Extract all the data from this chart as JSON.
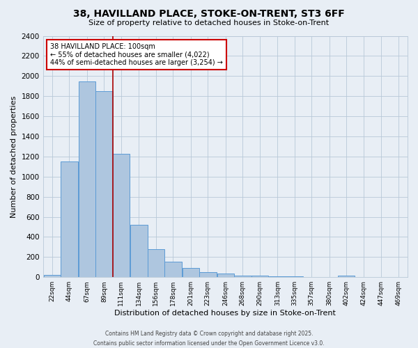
{
  "title_line1": "38, HAVILLAND PLACE, STOKE-ON-TRENT, ST3 6FF",
  "title_line2": "Size of property relative to detached houses in Stoke-on-Trent",
  "xlabel": "Distribution of detached houses by size in Stoke-on-Trent",
  "ylabel": "Number of detached properties",
  "bar_labels": [
    "22sqm",
    "44sqm",
    "67sqm",
    "89sqm",
    "111sqm",
    "134sqm",
    "156sqm",
    "178sqm",
    "201sqm",
    "223sqm",
    "246sqm",
    "268sqm",
    "290sqm",
    "313sqm",
    "335sqm",
    "357sqm",
    "380sqm",
    "402sqm",
    "424sqm",
    "447sqm",
    "469sqm"
  ],
  "bar_values": [
    25,
    1150,
    1950,
    1850,
    1230,
    520,
    275,
    155,
    90,
    48,
    38,
    15,
    15,
    5,
    5,
    3,
    3,
    15,
    3,
    3,
    3
  ],
  "bar_color": "#aec6df",
  "bar_edge_color": "#5b9bd5",
  "grid_color": "#b8c8d8",
  "background_color": "#e8eef5",
  "annotation_box_text": "38 HAVILLAND PLACE: 100sqm\n← 55% of detached houses are smaller (4,022)\n44% of semi-detached houses are larger (3,254) →",
  "annotation_box_color": "#ffffff",
  "annotation_box_edge_color": "#cc0000",
  "redline_x": 100,
  "ylim": [
    0,
    2400
  ],
  "yticks": [
    0,
    200,
    400,
    600,
    800,
    1000,
    1200,
    1400,
    1600,
    1800,
    2000,
    2200,
    2400
  ],
  "footer_line1": "Contains HM Land Registry data © Crown copyright and database right 2025.",
  "footer_line2": "Contains public sector information licensed under the Open Government Licence v3.0.",
  "bin_width": 22
}
